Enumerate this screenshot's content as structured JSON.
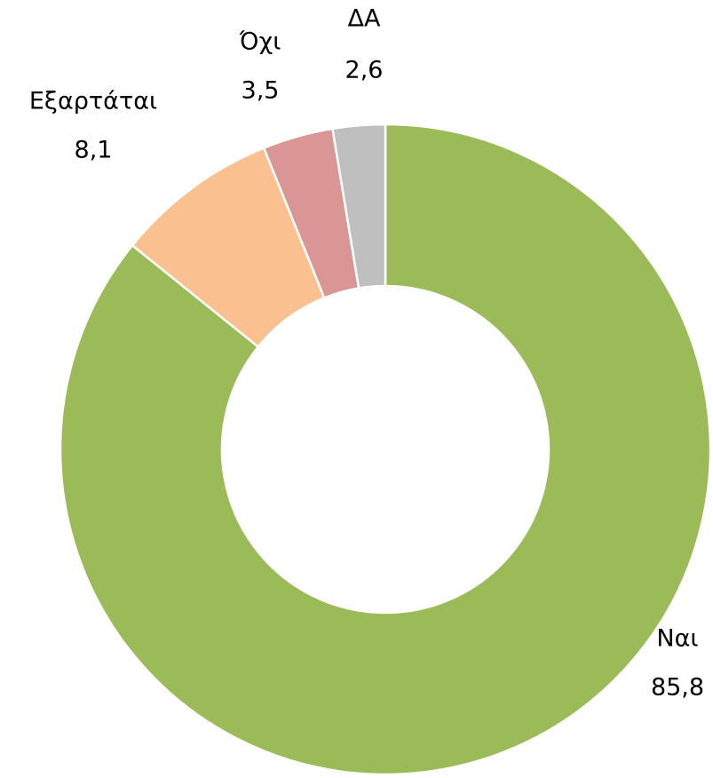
{
  "chart_data": {
    "type": "donut",
    "categories": [
      "Ναι",
      "Εξαρτάται",
      "Όχι",
      "ΔΑ"
    ],
    "values": [
      85.8,
      8.1,
      3.5,
      2.6
    ],
    "value_labels": [
      "85,8",
      "8,1",
      "3,5",
      "2,6"
    ],
    "colors": [
      "#9BBB59",
      "#FAC090",
      "#D99694",
      "#BFBFBF"
    ]
  }
}
